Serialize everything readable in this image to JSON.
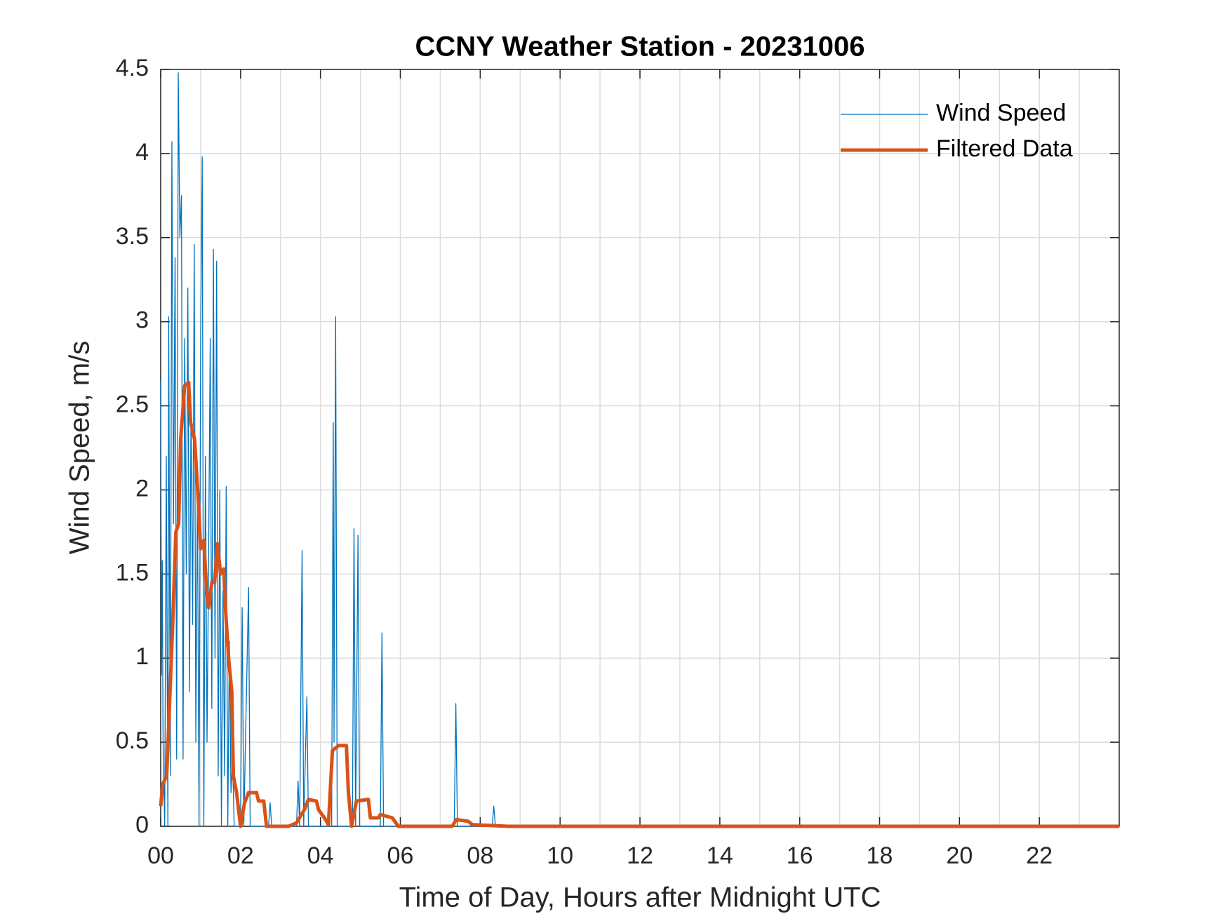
{
  "chart_data": {
    "type": "line",
    "title": "CCNY Weather Station - 20231006",
    "xlabel": "Time of Day, Hours after Midnight UTC",
    "ylabel": "Wind Speed, m/s",
    "xlim": [
      0,
      24
    ],
    "ylim": [
      0,
      4.5
    ],
    "xticks": [
      {
        "value": 0,
        "label": "00"
      },
      {
        "value": 2,
        "label": "02"
      },
      {
        "value": 4,
        "label": "04"
      },
      {
        "value": 6,
        "label": "06"
      },
      {
        "value": 8,
        "label": "08"
      },
      10,
      12,
      14,
      16,
      18,
      20,
      22
    ],
    "xminorticks": [
      1,
      3,
      5,
      7,
      9,
      11,
      13,
      15,
      17,
      19,
      21,
      23
    ],
    "yticks": [
      0,
      0.5,
      1,
      1.5,
      2,
      2.5,
      3,
      3.5,
      4,
      4.5
    ],
    "grid": true,
    "legend": "top-right",
    "series": [
      {
        "name": "Wind Speed",
        "color": "#0072bd",
        "width": 1.3,
        "x": [
          0.0,
          0.02,
          0.04,
          0.06,
          0.1,
          0.14,
          0.18,
          0.2,
          0.24,
          0.28,
          0.32,
          0.36,
          0.4,
          0.44,
          0.48,
          0.52,
          0.56,
          0.6,
          0.64,
          0.68,
          0.72,
          0.76,
          0.8,
          0.84,
          0.88,
          0.92,
          0.96,
          1.0,
          1.04,
          1.08,
          1.12,
          1.16,
          1.2,
          1.24,
          1.28,
          1.32,
          1.36,
          1.4,
          1.44,
          1.48,
          1.52,
          1.56,
          1.6,
          1.64,
          1.68,
          1.72,
          1.76,
          1.8,
          1.84,
          2.0,
          2.04,
          2.08,
          2.2,
          2.24,
          2.7,
          2.74,
          2.78,
          3.4,
          3.44,
          3.48,
          3.54,
          3.58,
          3.66,
          3.7,
          4.28,
          4.32,
          4.34,
          4.38,
          4.42,
          4.8,
          4.84,
          4.88,
          4.94,
          4.98,
          5.5,
          5.54,
          5.58,
          7.35,
          7.39,
          7.43,
          8.3,
          8.34,
          8.38,
          24
        ],
        "values": [
          2.65,
          0.9,
          1.58,
          0.5,
          0,
          2.2,
          0,
          3.03,
          0.3,
          4.07,
          1.8,
          3.38,
          0.4,
          4.48,
          3.5,
          3.75,
          0.4,
          2.9,
          1.5,
          3.2,
          0.8,
          2.5,
          1.2,
          3.46,
          0.5,
          2.0,
          0,
          2.9,
          3.98,
          0,
          2.2,
          0.5,
          1.6,
          2.9,
          0.7,
          3.43,
          1.0,
          3.36,
          0.3,
          2.0,
          0,
          1.4,
          0.3,
          2.02,
          0,
          1.1,
          0.2,
          0.4,
          0,
          0,
          1.3,
          0,
          1.42,
          0,
          0,
          0.14,
          0,
          0,
          0.27,
          0,
          1.64,
          0,
          0.77,
          0,
          0,
          2.4,
          0.5,
          3.03,
          0,
          0,
          1.77,
          0,
          1.73,
          0,
          0,
          1.15,
          0,
          0,
          0.73,
          0,
          0,
          0.12,
          0,
          0
        ]
      },
      {
        "name": "Filtered Data",
        "color": "#d95319",
        "width": 5,
        "x": [
          0,
          0.05,
          0.15,
          0.2,
          0.3,
          0.38,
          0.45,
          0.5,
          0.6,
          0.7,
          0.75,
          0.85,
          0.9,
          0.95,
          1.0,
          1.08,
          1.15,
          1.2,
          1.28,
          1.35,
          1.42,
          1.5,
          1.58,
          1.62,
          1.7,
          1.78,
          1.82,
          1.9,
          2.0,
          2.1,
          2.2,
          2.4,
          2.45,
          2.58,
          2.65,
          3.2,
          3.4,
          3.6,
          3.7,
          3.9,
          3.95,
          4.1,
          4.2,
          4.3,
          4.45,
          4.65,
          4.7,
          4.78,
          4.9,
          5.2,
          5.25,
          5.45,
          5.5,
          5.8,
          5.95,
          7.3,
          7.4,
          7.7,
          7.8,
          8.7,
          24
        ],
        "values": [
          0.12,
          0.25,
          0.3,
          0.6,
          1.2,
          1.75,
          1.8,
          2.3,
          2.62,
          2.64,
          2.4,
          2.3,
          2.1,
          1.9,
          1.65,
          1.7,
          1.4,
          1.3,
          1.45,
          1.45,
          1.68,
          1.5,
          1.53,
          1.3,
          1.0,
          0.8,
          0.3,
          0.2,
          0,
          0.14,
          0.2,
          0.2,
          0.15,
          0.15,
          0,
          0,
          0.02,
          0.1,
          0.16,
          0.15,
          0.1,
          0.05,
          0.01,
          0.45,
          0.48,
          0.48,
          0.2,
          0,
          0.15,
          0.16,
          0.05,
          0.05,
          0.07,
          0.05,
          0,
          0,
          0.04,
          0.03,
          0.01,
          0,
          0
        ]
      }
    ]
  }
}
